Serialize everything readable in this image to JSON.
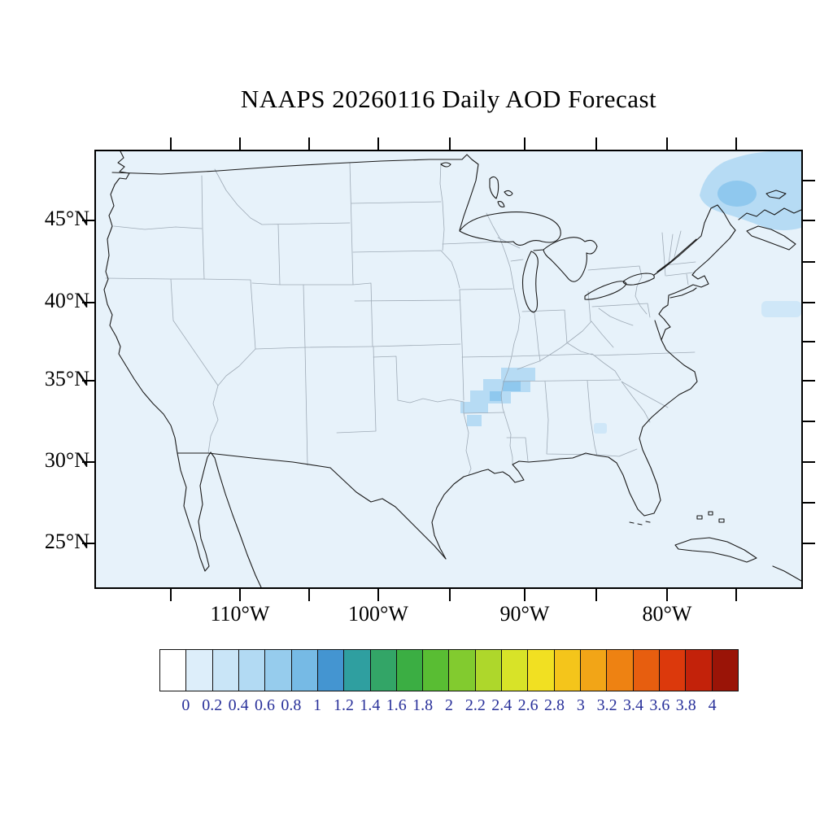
{
  "title": "NAAPS 20260116 Daily AOD Forecast",
  "map": {
    "lat_labels": [
      "45°N",
      "40°N",
      "35°N",
      "30°N",
      "25°N"
    ],
    "lon_labels": [
      "110°W",
      "100°W",
      "90°W",
      "80°W"
    ],
    "colors": {
      "background": "#e7f2fa",
      "aod_light": "#cfe7f8",
      "aod_medium": "#b6dbf4",
      "aod_deep": "#8fc8ee",
      "coastline": "#1b1b1b",
      "state_border": "#9eaab6"
    }
  },
  "colorbar": {
    "labels": [
      "0",
      "0.2",
      "0.4",
      "0.6",
      "0.8",
      "1",
      "1.2",
      "1.4",
      "1.6",
      "1.8",
      "2",
      "2.2",
      "2.4",
      "2.6",
      "2.8",
      "3",
      "3.2",
      "3.4",
      "3.6",
      "3.8",
      "4"
    ],
    "colors": [
      "#ffffff",
      "#ddeefa",
      "#c9e5f7",
      "#b2daf3",
      "#96cced",
      "#76bae5",
      "#4495d1",
      "#2f9fa0",
      "#33a567",
      "#3bae43",
      "#59bd33",
      "#82cb2f",
      "#aed72b",
      "#d8e328",
      "#f1e022",
      "#f4c51b",
      "#f2a517",
      "#ee8212",
      "#e75e0f",
      "#dc390c",
      "#c3220a",
      "#9a1407"
    ],
    "label_color": "#28309a"
  },
  "chart_data": {
    "type": "heatmap",
    "title": "NAAPS 20260116 Daily AOD Forecast",
    "model": "NAAPS",
    "date": "20260116",
    "variable": "Daily AOD Forecast (aerosol optical depth)",
    "region": "Continental United States with parts of Canada, Mexico, Cuba",
    "x_axis": {
      "label": "longitude",
      "ticks": [
        "110°W",
        "100°W",
        "90°W",
        "80°W"
      ]
    },
    "y_axis": {
      "label": "latitude",
      "ticks": [
        "45°N",
        "40°N",
        "35°N",
        "30°N",
        "25°N"
      ]
    },
    "colorbar": {
      "min": 0,
      "max": 4,
      "step": 0.2,
      "tick_labels": [
        "0",
        "0.2",
        "0.4",
        "0.6",
        "0.8",
        "1",
        "1.2",
        "1.4",
        "1.6",
        "1.8",
        "2",
        "2.2",
        "2.4",
        "2.6",
        "2.8",
        "3",
        "3.2",
        "3.4",
        "3.6",
        "3.8",
        "4"
      ],
      "position": "bottom",
      "orientation": "horizontal"
    },
    "field_features": [
      {
        "region": "Arkansas / western Tennessee mid-South cluster",
        "aod_range": "0.2-0.6"
      },
      {
        "region": "Maine / New Brunswick northeast corner blob",
        "aod_range": "0.2-0.4"
      },
      {
        "region": "Atlantic Ocean at eastern map edge near 39°N",
        "aod_range": "~0.2"
      },
      {
        "region": "central Georgia small spot",
        "aod_range": "~0.2"
      },
      {
        "region": "rest of domain",
        "aod_range": "< 0.2"
      }
    ],
    "grid": false,
    "legend_position": "bottom colorbar"
  }
}
